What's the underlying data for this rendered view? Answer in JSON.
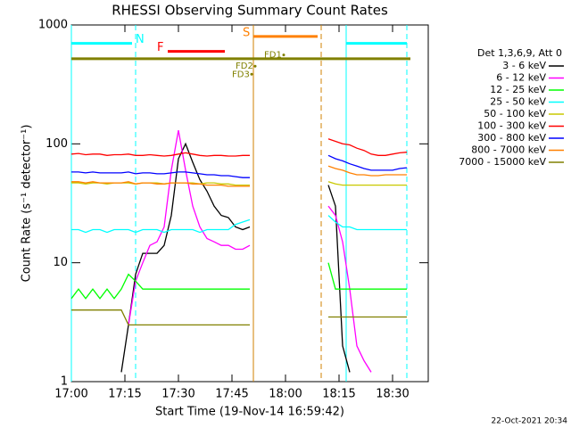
{
  "chart_data": {
    "type": "line",
    "title": "RHESSI Observing Summary Count Rates",
    "x_label": "Start Time (19-Nov-14 16:59:42)",
    "y_label": "Count Rate (s⁻¹ detector⁻¹)",
    "footer": "22-Oct-2021 20:34",
    "legend_title": "Det 1,3,6,9, Att 0",
    "log_y": true,
    "xlim": [
      "17:00",
      "18:40"
    ],
    "ylim": [
      1,
      1000
    ],
    "xticks": [
      "17:00",
      "17:15",
      "17:30",
      "17:45",
      "18:00",
      "18:15",
      "18:30"
    ],
    "yticks": [
      1,
      10,
      100,
      1000
    ],
    "x": [
      "17:00",
      "17:02",
      "17:04",
      "17:06",
      "17:08",
      "17:10",
      "17:12",
      "17:14",
      "17:16",
      "17:18",
      "17:20",
      "17:22",
      "17:24",
      "17:26",
      "17:28",
      "17:30",
      "17:32",
      "17:34",
      "17:36",
      "17:38",
      "17:40",
      "17:42",
      "17:44",
      "17:46",
      "17:48",
      "17:50",
      "18:00",
      "18:12",
      "18:14",
      "18:16",
      "18:18",
      "18:20",
      "18:22",
      "18:24",
      "18:26",
      "18:28",
      "18:30",
      "18:32",
      "18:34"
    ],
    "series": [
      {
        "name": "3 - 6 keV",
        "color": "#000000",
        "values": [
          null,
          null,
          null,
          null,
          null,
          null,
          null,
          1.2,
          3,
          8,
          12,
          12,
          12,
          14,
          25,
          75,
          100,
          70,
          50,
          40,
          30,
          25,
          24,
          20,
          19,
          20,
          null,
          45,
          30,
          2,
          1.2,
          null,
          null,
          null,
          null,
          null,
          null,
          null,
          null
        ]
      },
      {
        "name": "6 - 12 keV",
        "color": "#ff00ff",
        "values": [
          null,
          null,
          null,
          null,
          null,
          null,
          null,
          null,
          3,
          7,
          10,
          14,
          15,
          20,
          60,
          130,
          60,
          30,
          20,
          16,
          15,
          14,
          14,
          13,
          13,
          14,
          null,
          30,
          25,
          15,
          6,
          2,
          1.5,
          1.2,
          null,
          null,
          null,
          null,
          null
        ]
      },
      {
        "name": "12 - 25 keV",
        "color": "#00ff00",
        "values": [
          5,
          6,
          5,
          6,
          5,
          6,
          5,
          6,
          8,
          7,
          6,
          6,
          6,
          6,
          6,
          6,
          6,
          6,
          6,
          6,
          6,
          6,
          6,
          6,
          6,
          6,
          null,
          10,
          6,
          6,
          6,
          6,
          6,
          6,
          6,
          6,
          6,
          6,
          6
        ]
      },
      {
        "name": "25 - 50 keV",
        "color": "#00ffff",
        "values": [
          19,
          19,
          18,
          19,
          19,
          18,
          19,
          19,
          19,
          18,
          19,
          19,
          19,
          18,
          19,
          19,
          19,
          19,
          18,
          19,
          19,
          19,
          19,
          21,
          22,
          23,
          null,
          25,
          22,
          20,
          20,
          19,
          19,
          19,
          19,
          19,
          19,
          19,
          19
        ]
      },
      {
        "name": "50 - 100 keV",
        "color": "#c8c800",
        "values": [
          47,
          47,
          46,
          47,
          47,
          46,
          47,
          47,
          47,
          46,
          47,
          47,
          47,
          46,
          47,
          47,
          47,
          47,
          46,
          47,
          47,
          46,
          46,
          45,
          45,
          45,
          null,
          48,
          46,
          45,
          45,
          45,
          45,
          45,
          45,
          45,
          45,
          45,
          45
        ]
      },
      {
        "name": "100 - 300 keV",
        "color": "#ff0000",
        "values": [
          82,
          83,
          81,
          82,
          82,
          80,
          81,
          81,
          82,
          80,
          80,
          81,
          80,
          79,
          80,
          82,
          84,
          82,
          80,
          79,
          80,
          80,
          79,
          79,
          80,
          80,
          null,
          110,
          105,
          100,
          98,
          92,
          88,
          82,
          80,
          80,
          82,
          84,
          85
        ]
      },
      {
        "name": "300 - 800 keV",
        "color": "#0000ff",
        "values": [
          58,
          58,
          57,
          58,
          57,
          57,
          57,
          57,
          58,
          56,
          57,
          57,
          56,
          56,
          57,
          58,
          58,
          57,
          56,
          55,
          55,
          54,
          54,
          53,
          52,
          52,
          null,
          80,
          75,
          72,
          68,
          65,
          62,
          60,
          60,
          60,
          60,
          62,
          63
        ]
      },
      {
        "name": "800 - 7000 keV",
        "color": "#ff8000",
        "values": [
          48,
          48,
          47,
          48,
          47,
          47,
          47,
          47,
          48,
          46,
          47,
          47,
          46,
          46,
          47,
          47,
          47,
          46,
          46,
          45,
          45,
          45,
          44,
          44,
          44,
          44,
          null,
          65,
          62,
          60,
          57,
          55,
          55,
          54,
          54,
          55,
          55,
          55,
          55
        ]
      },
      {
        "name": "7000 - 15000 keV",
        "color": "#808000",
        "values": [
          4,
          4,
          4,
          4,
          4,
          4,
          4,
          4,
          3,
          3,
          3,
          3,
          3,
          3,
          3,
          3,
          3,
          3,
          3,
          3,
          3,
          3,
          3,
          3,
          3,
          3,
          null,
          3.5,
          3.5,
          3.5,
          3.5,
          3.5,
          3.5,
          3.5,
          3.5,
          3.5,
          3.5,
          3.5,
          3.5
        ]
      }
    ],
    "vlines": [
      {
        "time": "17:00",
        "color": "#00ffff",
        "dashed": false
      },
      {
        "time": "17:18",
        "color": "#00ffff",
        "dashed": true
      },
      {
        "time": "17:51",
        "color": "#d08000",
        "dashed": false
      },
      {
        "time": "18:10",
        "color": "#d08000",
        "dashed": true
      },
      {
        "time": "18:17",
        "color": "#00ffff",
        "dashed": false
      },
      {
        "time": "18:34",
        "color": "#00ffff",
        "dashed": true
      }
    ],
    "flags": [
      {
        "label": "N",
        "color": "#00ffff",
        "level": 700,
        "label_at": "17:18",
        "segments": [
          [
            "17:00",
            "17:17"
          ],
          [
            "18:17",
            "18:34"
          ]
        ]
      },
      {
        "label": "F",
        "color": "#ff0000",
        "level": 600,
        "label_at": "17:24",
        "segments": [
          [
            "17:27",
            "17:43"
          ]
        ]
      },
      {
        "label": "S",
        "color": "#ff8000",
        "level": 800,
        "label_at": "17:48",
        "segments": [
          [
            "17:51",
            "18:09"
          ]
        ]
      },
      {
        "label": "",
        "color": "#808000",
        "level": 520,
        "label_at": "17:00",
        "segments": [
          [
            "17:00",
            "18:35"
          ]
        ]
      }
    ],
    "tags": [
      {
        "text": "FD1",
        "time": "17:54",
        "level": 560
      },
      {
        "text": "FD2",
        "time": "17:46",
        "level": 450
      },
      {
        "text": "FD3",
        "time": "17:45",
        "level": 385
      }
    ]
  }
}
